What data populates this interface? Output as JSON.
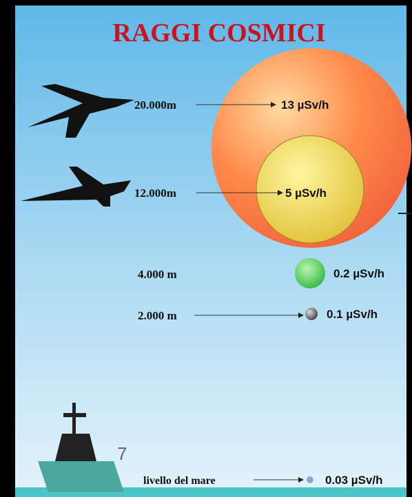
{
  "title": "RAGGI COSMICI",
  "levels": [
    {
      "altitude": "20.000m",
      "dose": "13 µSv/h"
    },
    {
      "altitude": "12.000m",
      "dose": "5 µSv/h"
    },
    {
      "altitude": "4.000 m",
      "dose": "0.2 µSv/h"
    },
    {
      "altitude": "2.000 m",
      "dose": "0.1 µSv/h"
    },
    {
      "altitude": "livello del mare",
      "dose": "0.03 µSv/h"
    }
  ],
  "page_number": "7"
}
